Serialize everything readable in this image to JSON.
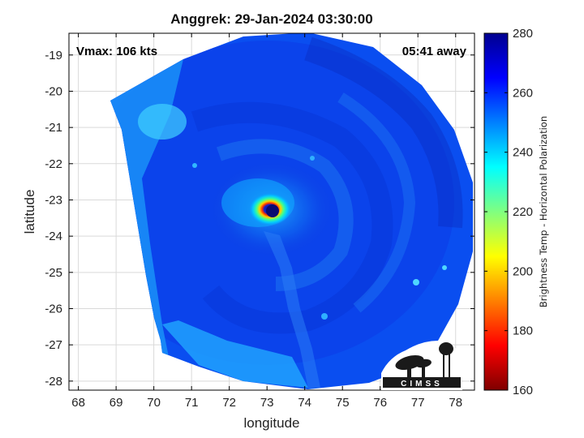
{
  "title": "Anggrek: 29-Jan-2024 03:30:00",
  "annotations": {
    "vmax": "Vmax: 106 kts",
    "time_away": "05:41 away"
  },
  "logo_text": "CIMSS",
  "colors": {
    "background": "#ffffff",
    "frame": "#000000",
    "grid": "#d9d9d9"
  },
  "map": {
    "xlabel": "longitude",
    "ylabel": "latitude",
    "xlim": [
      67.75,
      78.5
    ],
    "ylim": [
      -28.25,
      -18.4
    ],
    "xticks": [
      68,
      69,
      70,
      71,
      72,
      73,
      74,
      75,
      76,
      77,
      78
    ],
    "yticks": [
      -19,
      -20,
      -21,
      -22,
      -23,
      -24,
      -25,
      -26,
      -27,
      -28
    ],
    "storm_center": [
      73.15,
      -23.3
    ]
  },
  "colorbar": {
    "label": "Brightness Temp - Horizontal Polarization",
    "min": 160,
    "max": 280,
    "ticks": [
      160,
      180,
      200,
      220,
      240,
      260,
      280
    ],
    "colormap": [
      "#7f0000",
      "#ff0000",
      "#ff8000",
      "#ffff00",
      "#80ff80",
      "#00ffff",
      "#0080ff",
      "#0000ff",
      "#00008f"
    ]
  }
}
